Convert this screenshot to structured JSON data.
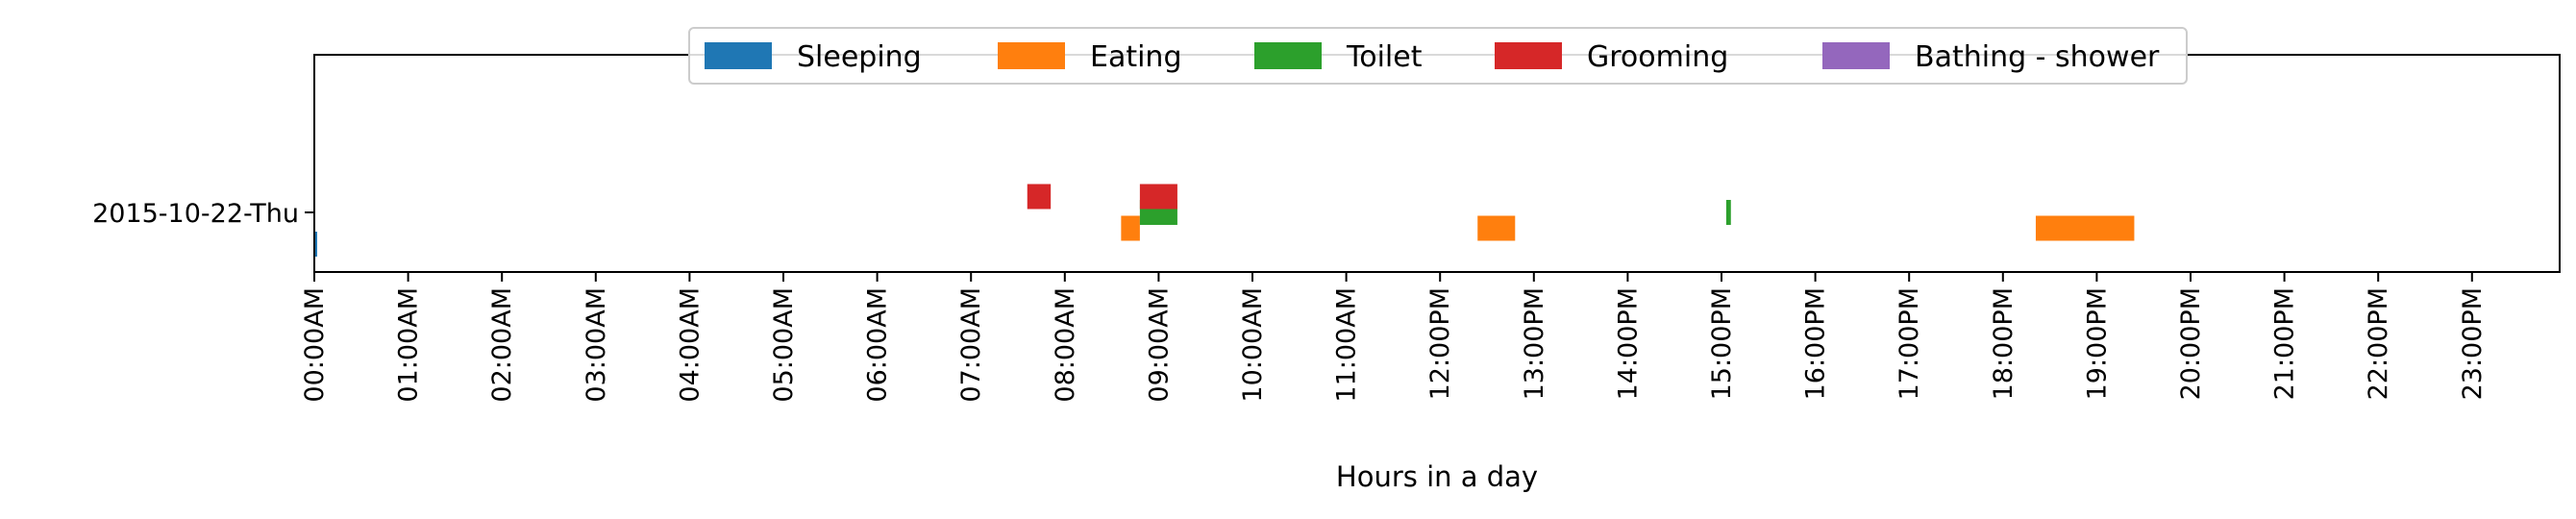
{
  "chart_data": {
    "type": "timeline",
    "title": "",
    "xlabel": "Hours in a day",
    "ylabel": "",
    "xlim": [
      0,
      24
    ],
    "x_ticks": [
      "00:00AM",
      "01:00AM",
      "02:00AM",
      "03:00AM",
      "04:00AM",
      "05:00AM",
      "06:00AM",
      "07:00AM",
      "08:00AM",
      "09:00AM",
      "10:00AM",
      "11:00AM",
      "12:00PM",
      "13:00PM",
      "14:00PM",
      "15:00PM",
      "16:00PM",
      "17:00PM",
      "18:00PM",
      "19:00PM",
      "20:00PM",
      "21:00PM",
      "22:00PM",
      "23:00PM"
    ],
    "y_categories": [
      "2015-10-22-Thu"
    ],
    "grid": false,
    "legend_position": "top-center",
    "series": [
      {
        "name": "Sleeping",
        "color": "#1f77b4",
        "lane": -0.5,
        "intervals": [
          [
            0.0,
            0.03
          ]
        ]
      },
      {
        "name": "Eating",
        "color": "#ff7f0e",
        "lane": -0.25,
        "intervals": [
          [
            8.6,
            8.8
          ],
          [
            12.4,
            12.8
          ],
          [
            18.35,
            19.4
          ]
        ]
      },
      {
        "name": "Toilet",
        "color": "#2ca02c",
        "lane": 0.0,
        "intervals": [
          [
            8.8,
            9.2
          ],
          [
            15.05,
            15.1
          ]
        ]
      },
      {
        "name": "Grooming",
        "color": "#d62728",
        "lane": 0.25,
        "intervals": [
          [
            7.6,
            7.85
          ],
          [
            8.8,
            9.2
          ]
        ]
      },
      {
        "name": "Bathing - shower",
        "color": "#9467bd",
        "lane": 0.5,
        "intervals": []
      }
    ]
  }
}
